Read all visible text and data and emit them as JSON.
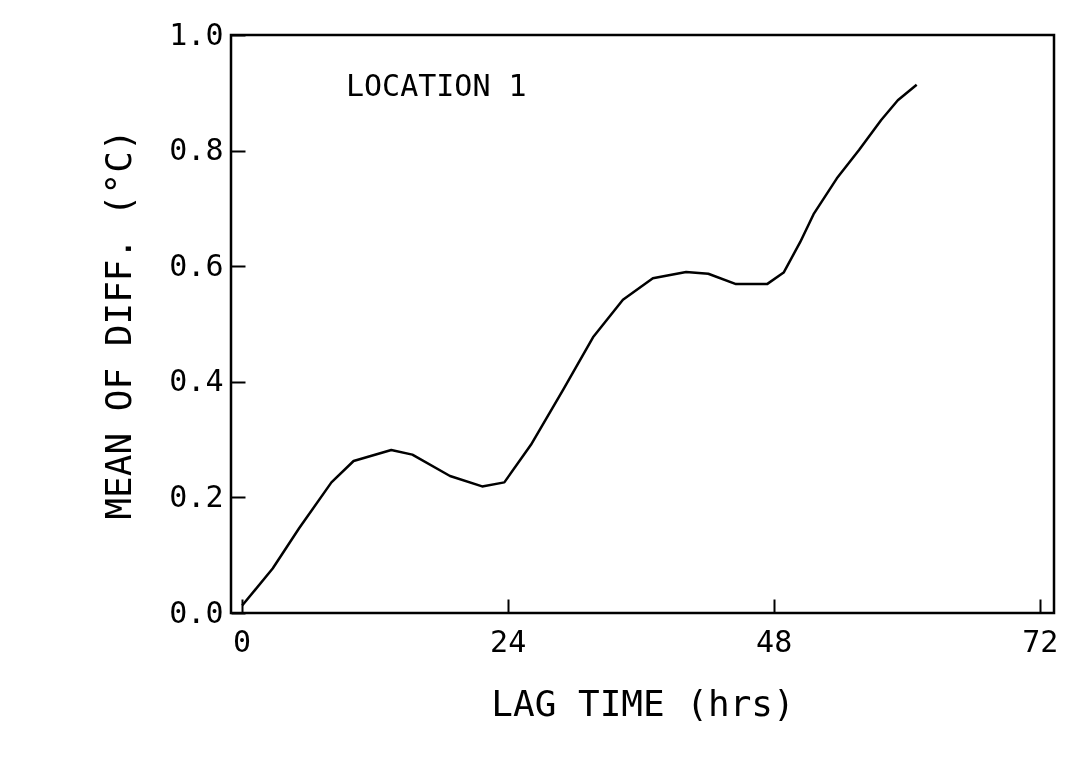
{
  "chart_data": {
    "type": "line",
    "xlabel": "LAG TIME (hrs)",
    "ylabel": "MEAN OF DIFF. (°C)",
    "annotations": [
      "LOCATION 1"
    ],
    "x": [
      0.05,
      2.8,
      5.2,
      8.1,
      10.1,
      13.5,
      15.4,
      18.8,
      21.7,
      23.7,
      26.1,
      29.0,
      31.7,
      34.4,
      37.1,
      40.1,
      42.1,
      44.6,
      47.4,
      48.9,
      50.4,
      51.6,
      53.7,
      55.7,
      57.7,
      59.2,
      60.9
    ],
    "series": [
      {
        "color": "#000000",
        "values": [
          0.013,
          0.077,
          0.147,
          0.226,
          0.263,
          0.282,
          0.274,
          0.237,
          0.219,
          0.226,
          0.291,
          0.386,
          0.477,
          0.542,
          0.579,
          0.59,
          0.587,
          0.569,
          0.569,
          0.589,
          0.642,
          0.69,
          0.752,
          0.801,
          0.853,
          0.887,
          0.914
        ]
      }
    ],
    "xlim": [
      -0.96,
      73.29
    ],
    "xticks": [
      0,
      24,
      48,
      72
    ],
    "ylim": [
      0,
      1
    ],
    "yticks": [
      {
        "value": 0,
        "label": "0.0"
      },
      {
        "value": 0.2,
        "label": "0.2"
      },
      {
        "value": 0.4,
        "label": "0.4"
      },
      {
        "value": 0.6,
        "label": "0.6"
      },
      {
        "value": 0.8,
        "label": "0.8"
      },
      {
        "value": 1,
        "label": "1.0"
      }
    ],
    "grid": false,
    "marker": "none",
    "line_style": "solid"
  }
}
